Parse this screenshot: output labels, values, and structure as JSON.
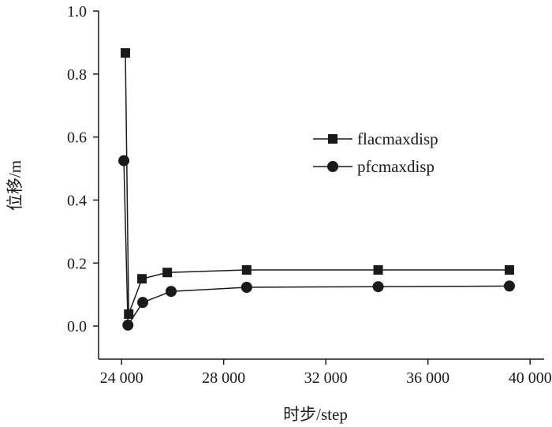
{
  "chart_data": {
    "type": "line",
    "title": "",
    "xlabel": "时步/step",
    "ylabel": "位移/m",
    "xlim": [
      23100,
      40550
    ],
    "ylim": [
      -0.105,
      1.0
    ],
    "xticks": [
      24000,
      28000,
      32000,
      36000,
      40000
    ],
    "xtick_labels": [
      "24 000",
      "28 000",
      "32 000",
      "36 000",
      "40 000"
    ],
    "yticks": [
      0.0,
      0.2,
      0.4,
      0.6,
      0.8,
      1.0
    ],
    "ytick_labels": [
      "0.0",
      "0.2",
      "0.4",
      "0.6",
      "0.8",
      "1.0"
    ],
    "grid": false,
    "legend_position": "center-right",
    "series": [
      {
        "name": "flacmaxdisp",
        "marker": "square",
        "x": [
          24150,
          24280,
          24800,
          25790,
          28900,
          34050,
          39190
        ],
        "y": [
          0.867,
          0.038,
          0.15,
          0.17,
          0.178,
          0.178,
          0.178
        ]
      },
      {
        "name": "pfcmaxdisp",
        "marker": "circle",
        "x": [
          24090,
          24250,
          24830,
          25940,
          28900,
          34050,
          39190
        ],
        "y": [
          0.525,
          0.003,
          0.075,
          0.11,
          0.123,
          0.125,
          0.127
        ]
      }
    ],
    "color": "#1a1a1a"
  }
}
